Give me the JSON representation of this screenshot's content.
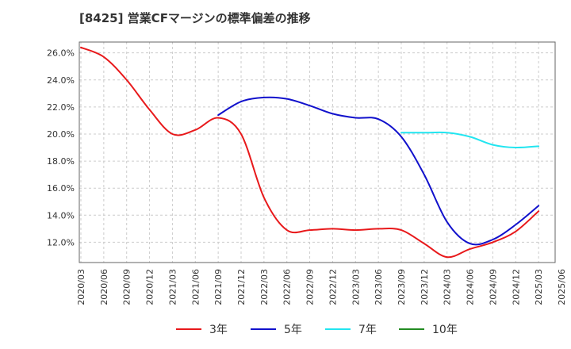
{
  "chart_data": {
    "type": "line",
    "title": "[8425]  営業CFマージンの標準偏差の推移",
    "xlabel": "",
    "ylabel": "",
    "x": [
      "2020/03",
      "2020/06",
      "2020/09",
      "2020/12",
      "2021/03",
      "2021/06",
      "2021/09",
      "2021/12",
      "2022/03",
      "2022/06",
      "2022/09",
      "2022/12",
      "2023/03",
      "2023/06",
      "2023/09",
      "2023/12",
      "2024/03",
      "2024/06",
      "2024/09",
      "2024/12",
      "2025/03",
      "2025/06"
    ],
    "y_ticks": [
      "12.0%",
      "14.0%",
      "16.0%",
      "18.0%",
      "20.0%",
      "22.0%",
      "24.0%",
      "26.0%"
    ],
    "ylim": [
      10.5,
      26.8
    ],
    "grid": true,
    "legend_position": "bottom",
    "series": [
      {
        "name": "3年",
        "color": "#e8191b",
        "values": [
          26.4,
          25.7,
          24.0,
          21.8,
          20.0,
          20.3,
          21.2,
          20.0,
          15.3,
          12.9,
          12.9,
          13.0,
          12.9,
          13.0,
          12.9,
          11.9,
          10.9,
          11.5,
          12.0,
          12.8,
          14.3,
          null
        ]
      },
      {
        "name": "5年",
        "color": "#1111cc",
        "values": [
          null,
          null,
          null,
          null,
          null,
          null,
          21.4,
          22.4,
          22.7,
          22.6,
          22.1,
          21.5,
          21.2,
          21.1,
          19.8,
          17.0,
          13.5,
          11.9,
          12.2,
          13.3,
          14.7,
          null
        ]
      },
      {
        "name": "7年",
        "color": "#22e5f0",
        "values": [
          null,
          null,
          null,
          null,
          null,
          null,
          null,
          null,
          null,
          null,
          null,
          null,
          null,
          null,
          20.1,
          20.1,
          20.1,
          19.8,
          19.2,
          19.0,
          19.1,
          null
        ]
      },
      {
        "name": "10年",
        "color": "#238b22",
        "values": [
          null,
          null,
          null,
          null,
          null,
          null,
          null,
          null,
          null,
          null,
          null,
          null,
          null,
          null,
          null,
          null,
          null,
          null,
          null,
          null,
          null,
          null
        ]
      }
    ]
  }
}
